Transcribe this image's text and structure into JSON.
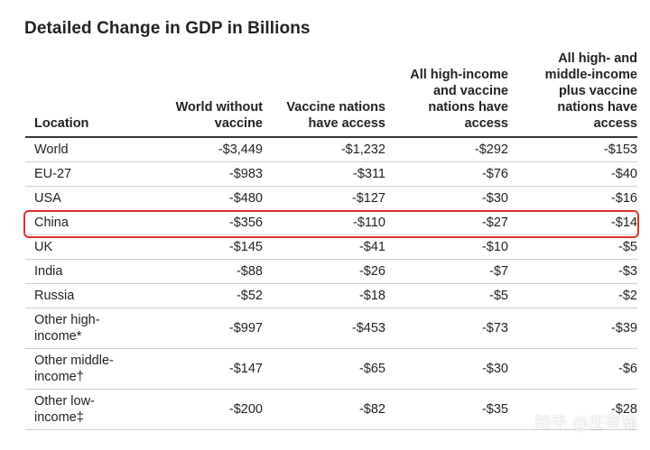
{
  "title": "Detailed Change in GDP in Billions",
  "columns": [
    "Location",
    "World without\nvaccine",
    "Vaccine nations\nhave access",
    "All high-income\nand vaccine\nnations have\naccess",
    "All high- and\nmiddle-income\nplus vaccine\nnations have\naccess"
  ],
  "rows": [
    {
      "location": "World",
      "values": [
        "-$3,449",
        "-$1,232",
        "-$292",
        "-$153"
      ]
    },
    {
      "location": "EU-27",
      "values": [
        "-$983",
        "-$311",
        "-$76",
        "-$40"
      ]
    },
    {
      "location": "USA",
      "values": [
        "-$480",
        "-$127",
        "-$30",
        "-$16"
      ]
    },
    {
      "location": "China",
      "values": [
        "-$356",
        "-$110",
        "-$27",
        "-$14"
      ]
    },
    {
      "location": "UK",
      "values": [
        "-$145",
        "-$41",
        "-$10",
        "-$5"
      ]
    },
    {
      "location": "India",
      "values": [
        "-$88",
        "-$26",
        "-$7",
        "-$3"
      ]
    },
    {
      "location": "Russia",
      "values": [
        "-$52",
        "-$18",
        "-$5",
        "-$2"
      ]
    },
    {
      "location": "Other high-\nincome*",
      "values": [
        "-$997",
        "-$453",
        "-$73",
        "-$39"
      ]
    },
    {
      "location": "Other middle-\nincome†",
      "values": [
        "-$147",
        "-$65",
        "-$30",
        "-$6"
      ]
    },
    {
      "location": "Other low-\nincome‡",
      "values": [
        "-$200",
        "-$82",
        "-$35",
        "-$28"
      ]
    }
  ],
  "highlight_row": "China",
  "highlight_color": "#e0302a",
  "watermark": "知乎 @庄有猫"
}
